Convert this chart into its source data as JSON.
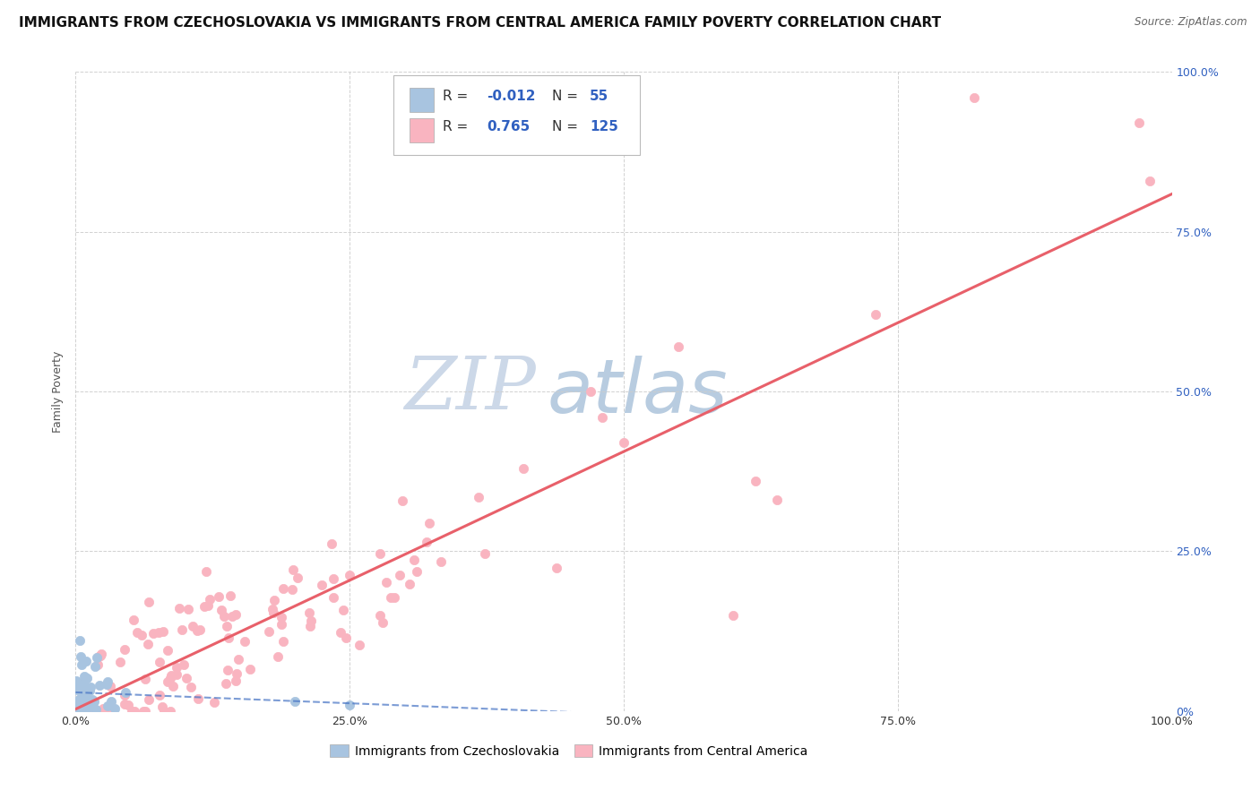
{
  "title": "IMMIGRANTS FROM CZECHOSLOVAKIA VS IMMIGRANTS FROM CENTRAL AMERICA FAMILY POVERTY CORRELATION CHART",
  "source": "Source: ZipAtlas.com",
  "ylabel": "Family Poverty",
  "watermark_zip": "ZIP",
  "watermark_atlas": "atlas",
  "xlim": [
    0,
    1
  ],
  "ylim": [
    0,
    1
  ],
  "xtick_vals": [
    0.0,
    0.25,
    0.5,
    0.75,
    1.0
  ],
  "xtick_labels": [
    "0.0%",
    "25.0%",
    "50.0%",
    "75.0%",
    "100.0%"
  ],
  "ytick_vals": [
    0.0,
    0.25,
    0.5,
    0.75,
    1.0
  ],
  "ytick_labels_right": [
    "0%",
    "25.0%",
    "50.0%",
    "75.0%",
    "100.0%"
  ],
  "blue_color": "#a8c4e0",
  "pink_color": "#f9b4c0",
  "blue_line_color": "#4472c4",
  "pink_line_color": "#e8606a",
  "blue_R": -0.012,
  "blue_N": 55,
  "pink_R": 0.765,
  "pink_N": 125,
  "title_fontsize": 11,
  "axis_label_fontsize": 9,
  "tick_fontsize": 9,
  "legend_fontsize": 12,
  "watermark_fontsize_zip": 60,
  "watermark_fontsize_atlas": 60,
  "watermark_color_zip": "#ccd8e8",
  "watermark_color_atlas": "#b8cce0",
  "background_color": "#ffffff",
  "grid_color": "#cccccc",
  "legend_R_label_color": "#333333",
  "legend_value_color": "#3060c0"
}
